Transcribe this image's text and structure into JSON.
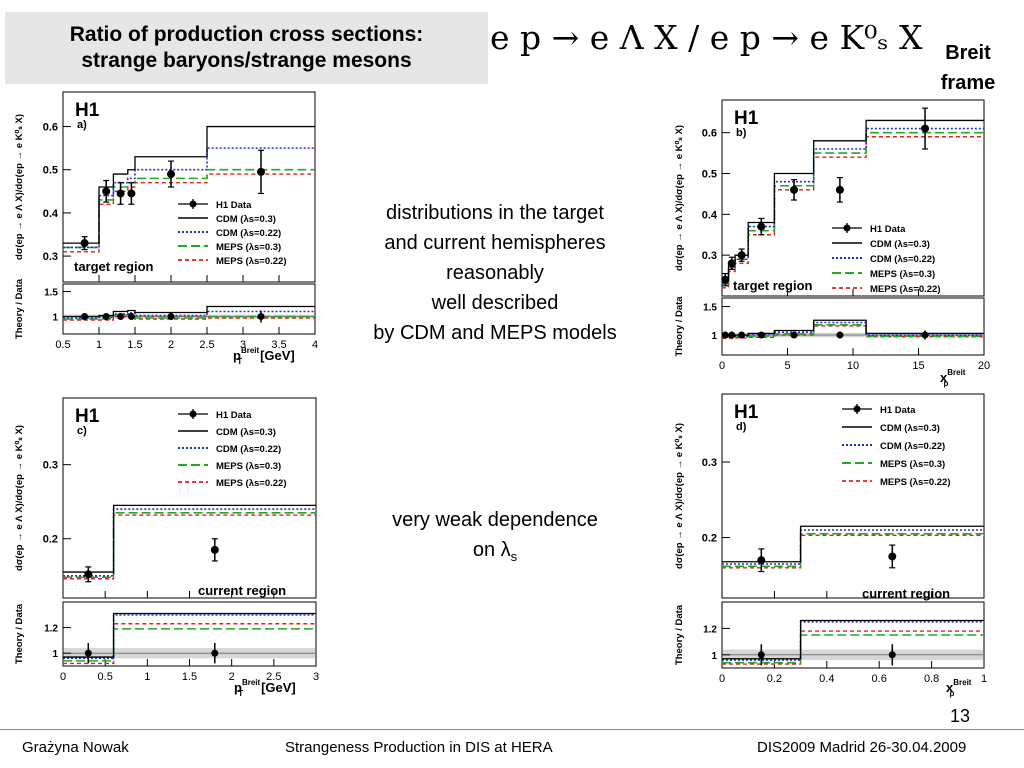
{
  "header": {
    "title_line1": "Ratio of production cross sections:",
    "title_line2": "strange baryons/strange mesons",
    "formula": "e p → e Λ X / e p → e K⁰ₛ X",
    "frame_line1": "Breit",
    "frame_line2": "frame"
  },
  "notes": {
    "hemispheres": [
      "distributions in the target",
      "and current  hemispheres",
      "reasonably",
      "well described",
      "by  CDM and MEPS models"
    ],
    "weak_line1": "very weak dependence",
    "weak_line2_prefix": "on ",
    "weak_line2_symbol": "λ",
    "weak_line2_sub": "s"
  },
  "footer": {
    "author": "Grażyna Nowak",
    "talk": "Strangeness Production in DIS at HERA",
    "conference": "DIS2009 Madrid 26-30.04.2009",
    "page": "13"
  },
  "colors": {
    "cdm03": "#000000",
    "cdm022": "#2233cc",
    "meps03": "#22aa22",
    "meps022": "#dd2222",
    "band": "#cccccc"
  },
  "chart_data": [
    {
      "type": "line",
      "panel_label": "a)",
      "experiment": "H1",
      "region": "target region",
      "ylabel": "dσ(ep → e Λ X)/dσ(ep → e K⁰ₛ X)",
      "ratio_ylabel": "Theory / Data",
      "xlabel_main": "p",
      "xlabel_sub": "T",
      "xlabel_sup": "Breit",
      "xlabel_unit": "[GeV]",
      "xlim": [
        0.5,
        4
      ],
      "ylim": [
        0.24,
        0.68
      ],
      "ratio_ylim": [
        0.65,
        1.65
      ],
      "xticks": [
        0.5,
        1,
        1.5,
        2,
        2.5,
        3,
        3.5,
        4
      ],
      "xtick_labels": [
        "0.5",
        "1",
        "1.5",
        "2",
        "2.5",
        "3",
        "3.5",
        "4"
      ],
      "yticks": [
        0.3,
        0.4,
        0.5,
        0.6
      ],
      "ytick_labels": [
        "0.3",
        "0.4",
        "0.5",
        "0.6"
      ],
      "ratio_yticks": [
        1,
        1.5
      ],
      "ratio_ytick_labels": [
        "1",
        "1.5"
      ],
      "legend": [
        "H1 Data",
        "CDM (λs=0.3)",
        "CDM (λs=0.22)",
        "MEPS (λs=0.3)",
        "MEPS (λs=0.22)"
      ],
      "legend_position": "right",
      "bins": [
        0.5,
        1.0,
        1.2,
        1.4,
        1.5,
        2.5,
        4.0
      ],
      "data": {
        "x": [
          0.8,
          1.1,
          1.3,
          1.45,
          2.0,
          3.25
        ],
        "y": [
          0.33,
          0.45,
          0.445,
          0.445,
          0.49,
          0.495
        ],
        "err": [
          0.015,
          0.025,
          0.025,
          0.025,
          0.03,
          0.05
        ]
      },
      "models": {
        "cdm03": [
          0.33,
          0.46,
          0.49,
          0.5,
          0.53,
          0.6
        ],
        "cdm022": [
          0.32,
          0.44,
          0.47,
          0.48,
          0.5,
          0.55
        ],
        "meps03": [
          0.32,
          0.43,
          0.46,
          0.47,
          0.48,
          0.5
        ],
        "meps022": [
          0.31,
          0.42,
          0.45,
          0.46,
          0.47,
          0.49
        ]
      },
      "ratios": {
        "data": {
          "x": [
            0.8,
            1.1,
            1.3,
            1.45,
            2.0,
            3.25
          ],
          "y": [
            1,
            1,
            1,
            1,
            1,
            1
          ],
          "err": [
            0.05,
            0.05,
            0.06,
            0.06,
            0.07,
            0.12
          ]
        },
        "cdm03": [
          1.0,
          1.02,
          1.1,
          1.12,
          1.08,
          1.2
        ],
        "cdm022": [
          0.97,
          0.98,
          1.05,
          1.07,
          1.02,
          1.1
        ],
        "meps03": [
          0.95,
          0.95,
          1.03,
          1.05,
          0.97,
          1.0
        ],
        "meps022": [
          0.93,
          0.93,
          1.0,
          1.02,
          0.95,
          0.97
        ]
      }
    },
    {
      "type": "line",
      "panel_label": "b)",
      "experiment": "H1",
      "region": "target region",
      "ylabel": "dσ(ep → e Λ X)/dσ(ep → e K⁰ₛ X)",
      "ratio_ylabel": "Theory / Data",
      "xlabel_main": "x",
      "xlabel_sub": "p",
      "xlabel_sup": "Breit",
      "xlabel_unit": "",
      "xlim": [
        0,
        20
      ],
      "ylim": [
        0.2,
        0.68
      ],
      "ratio_ylim": [
        0.65,
        1.65
      ],
      "xticks": [
        0,
        5,
        10,
        15,
        20
      ],
      "xtick_labels": [
        "0",
        "5",
        "10",
        "15",
        "20"
      ],
      "yticks": [
        0.3,
        0.4,
        0.5,
        0.6
      ],
      "ytick_labels": [
        "0.3",
        "0.4",
        "0.5",
        "0.6"
      ],
      "ratio_yticks": [
        1,
        1.5
      ],
      "ratio_ytick_labels": [
        "1",
        "1.5"
      ],
      "legend": [
        "H1 Data",
        "CDM (λs=0.3)",
        "CDM (λs=0.22)",
        "MEPS (λs=0.3)",
        "MEPS (λs=0.22)"
      ],
      "legend_position": "right",
      "bins": [
        0,
        0.5,
        1,
        2,
        4,
        7,
        11,
        20
      ],
      "data": {
        "x": [
          0.25,
          0.75,
          1.5,
          3.0,
          5.5,
          9.0,
          15.5
        ],
        "y": [
          0.24,
          0.28,
          0.3,
          0.37,
          0.46,
          0.46,
          0.61
        ],
        "err": [
          0.015,
          0.015,
          0.015,
          0.02,
          0.025,
          0.03,
          0.05
        ]
      },
      "models": {
        "cdm03": [
          0.24,
          0.28,
          0.3,
          0.38,
          0.5,
          0.58,
          0.63
        ],
        "cdm022": [
          0.23,
          0.27,
          0.29,
          0.37,
          0.48,
          0.56,
          0.61
        ],
        "meps03": [
          0.23,
          0.27,
          0.29,
          0.36,
          0.47,
          0.55,
          0.6
        ],
        "meps022": [
          0.22,
          0.26,
          0.28,
          0.35,
          0.46,
          0.54,
          0.59
        ]
      },
      "ratios": {
        "data": {
          "x": [
            0.25,
            0.75,
            1.5,
            3.0,
            5.5,
            9.0,
            15.5
          ],
          "y": [
            1,
            1,
            1,
            1,
            1,
            1,
            1
          ],
          "err": [
            0.06,
            0.05,
            0.05,
            0.05,
            0.05,
            0.06,
            0.08
          ]
        },
        "cdm03": [
          1.0,
          1.0,
          1.0,
          1.03,
          1.08,
          1.26,
          1.03
        ],
        "cdm022": [
          0.98,
          0.98,
          0.98,
          1.01,
          1.05,
          1.22,
          1.0
        ],
        "meps03": [
          0.96,
          0.96,
          0.97,
          0.98,
          1.02,
          1.18,
          0.98
        ],
        "meps022": [
          0.94,
          0.94,
          0.95,
          0.96,
          1.0,
          1.16,
          0.97
        ]
      }
    },
    {
      "type": "line",
      "panel_label": "c)",
      "experiment": "H1",
      "region": "current region",
      "ylabel": "dσ(ep → e Λ X)/dσ(ep → e K⁰ₛ X)",
      "ratio_ylabel": "Theory / Data",
      "xlabel_main": "p",
      "xlabel_sub": "T",
      "xlabel_sup": "Breit",
      "xlabel_unit": "[GeV]",
      "xlim": [
        0,
        3
      ],
      "ylim": [
        0.12,
        0.39
      ],
      "ratio_ylim": [
        0.9,
        1.4
      ],
      "xticks": [
        0,
        0.5,
        1,
        1.5,
        2,
        2.5,
        3
      ],
      "xtick_labels": [
        "0",
        "0.5",
        "1",
        "1.5",
        "2",
        "2.5",
        "3"
      ],
      "yticks": [
        0.2,
        0.3
      ],
      "ytick_labels": [
        "0.2",
        "0.3"
      ],
      "ratio_yticks": [
        1,
        1.2
      ],
      "ratio_ytick_labels": [
        "1",
        "1.2"
      ],
      "legend": [
        "H1 Data",
        "CDM (λs=0.3)",
        "CDM (λs=0.22)",
        "MEPS (λs=0.3)",
        "MEPS (λs=0.22)"
      ],
      "legend_position": "top-right",
      "bins": [
        0,
        0.6,
        3
      ],
      "data": {
        "x": [
          0.3,
          1.8
        ],
        "y": [
          0.152,
          0.185
        ],
        "err": [
          0.01,
          0.015
        ]
      },
      "models": {
        "cdm03": [
          0.155,
          0.245
        ],
        "cdm022": [
          0.15,
          0.24
        ],
        "meps03": [
          0.148,
          0.235
        ],
        "meps022": [
          0.146,
          0.232
        ]
      },
      "ratios": {
        "data": {
          "x": [
            0.3,
            1.8
          ],
          "y": [
            1,
            1
          ],
          "err": [
            0.08,
            0.08
          ]
        },
        "cdm03": [
          0.97,
          1.31
        ],
        "cdm022": [
          0.96,
          1.3
        ],
        "meps03": [
          0.94,
          1.19
        ],
        "meps022": [
          0.92,
          1.23
        ]
      }
    },
    {
      "type": "line",
      "panel_label": "d)",
      "experiment": "H1",
      "region": "current region",
      "ylabel": "dσ(ep → e Λ X)/dσ(ep → e K⁰ₛ X)",
      "ratio_ylabel": "Theory / Data",
      "xlabel_main": "x",
      "xlabel_sub": "p",
      "xlabel_sup": "Breit",
      "xlabel_unit": "",
      "xlim": [
        0,
        1
      ],
      "ylim": [
        0.12,
        0.39
      ],
      "ratio_ylim": [
        0.9,
        1.4
      ],
      "xticks": [
        0,
        0.2,
        0.4,
        0.6,
        0.8,
        1
      ],
      "xtick_labels": [
        "0",
        "0.2",
        "0.4",
        "0.6",
        "0.8",
        "1"
      ],
      "yticks": [
        0.2,
        0.3
      ],
      "ytick_labels": [
        "0.2",
        "0.3"
      ],
      "ratio_yticks": [
        1,
        1.2
      ],
      "ratio_ytick_labels": [
        "1",
        "1.2"
      ],
      "legend": [
        "H1 Data",
        "CDM (λs=0.3)",
        "CDM (λs=0.22)",
        "MEPS (λs=0.3)",
        "MEPS (λs=0.22)"
      ],
      "legend_position": "top-right",
      "bins": [
        0,
        0.3,
        1
      ],
      "data": {
        "x": [
          0.15,
          0.65
        ],
        "y": [
          0.17,
          0.175
        ],
        "err": [
          0.015,
          0.015
        ]
      },
      "models": {
        "cdm03": [
          0.168,
          0.215
        ],
        "cdm022": [
          0.165,
          0.21
        ],
        "meps03": [
          0.162,
          0.205
        ],
        "meps022": [
          0.16,
          0.203
        ]
      },
      "ratios": {
        "data": {
          "x": [
            0.15,
            0.65
          ],
          "y": [
            1,
            1
          ],
          "err": [
            0.08,
            0.08
          ]
        },
        "cdm03": [
          0.97,
          1.26
        ],
        "cdm022": [
          0.96,
          1.25
        ],
        "meps03": [
          0.94,
          1.15
        ],
        "meps022": [
          0.93,
          1.18
        ]
      }
    }
  ]
}
